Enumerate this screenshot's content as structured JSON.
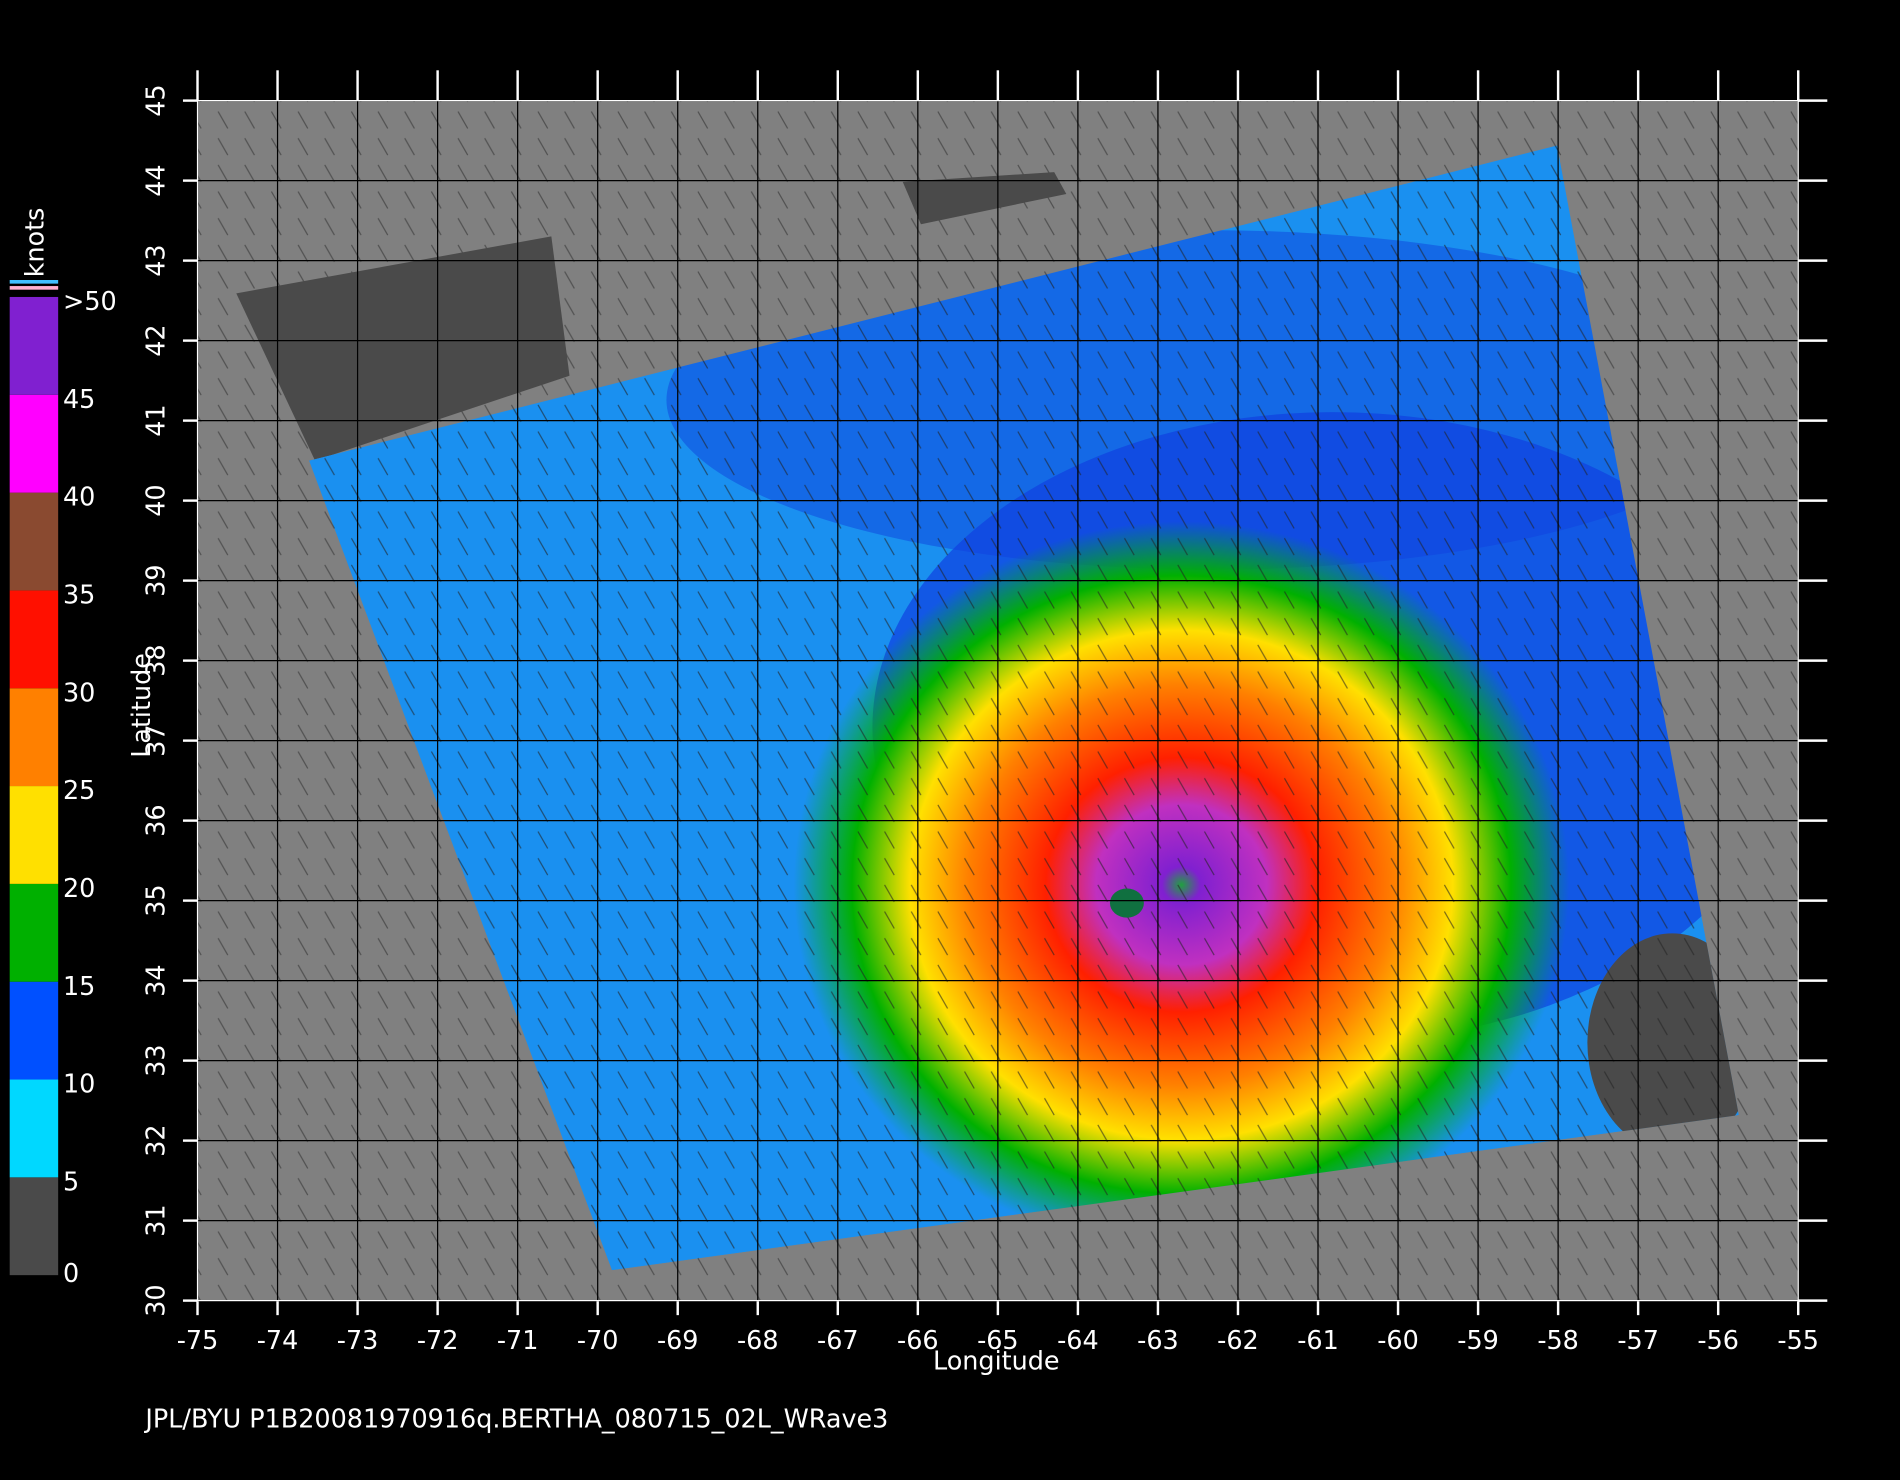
{
  "chart_data": {
    "type": "map",
    "xlabel": "Longitude",
    "ylabel": "Latitude",
    "footer": "JPL/BYU  P1B20081970916q.BERTHA_080715_02L_WRave3",
    "xlim": [
      -75,
      -55
    ],
    "ylim": [
      30,
      45
    ],
    "xticks": [
      -75,
      -74,
      -73,
      -72,
      -71,
      -70,
      -69,
      -68,
      -67,
      -66,
      -65,
      -64,
      -63,
      -62,
      -61,
      -60,
      -59,
      -58,
      -57,
      -56,
      -55
    ],
    "yticks": [
      30,
      31,
      32,
      33,
      34,
      35,
      36,
      37,
      38,
      39,
      40,
      41,
      42,
      43,
      44,
      45
    ],
    "grid": true,
    "colorbar": {
      "label": "knots",
      "lim": [
        0,
        50
      ],
      "ticks": [
        0,
        5,
        10,
        15,
        20,
        25,
        30,
        35,
        40,
        45,
        {
          "value": 50,
          "label": ">50"
        }
      ],
      "colors": [
        "#4a4a4a",
        "#00d8ff",
        "#0050ff",
        "#00b000",
        "#ffe000",
        "#ff8000",
        "#ff1000",
        "#8a4a30",
        "#ff00ff",
        "#8020d0"
      ]
    }
  }
}
